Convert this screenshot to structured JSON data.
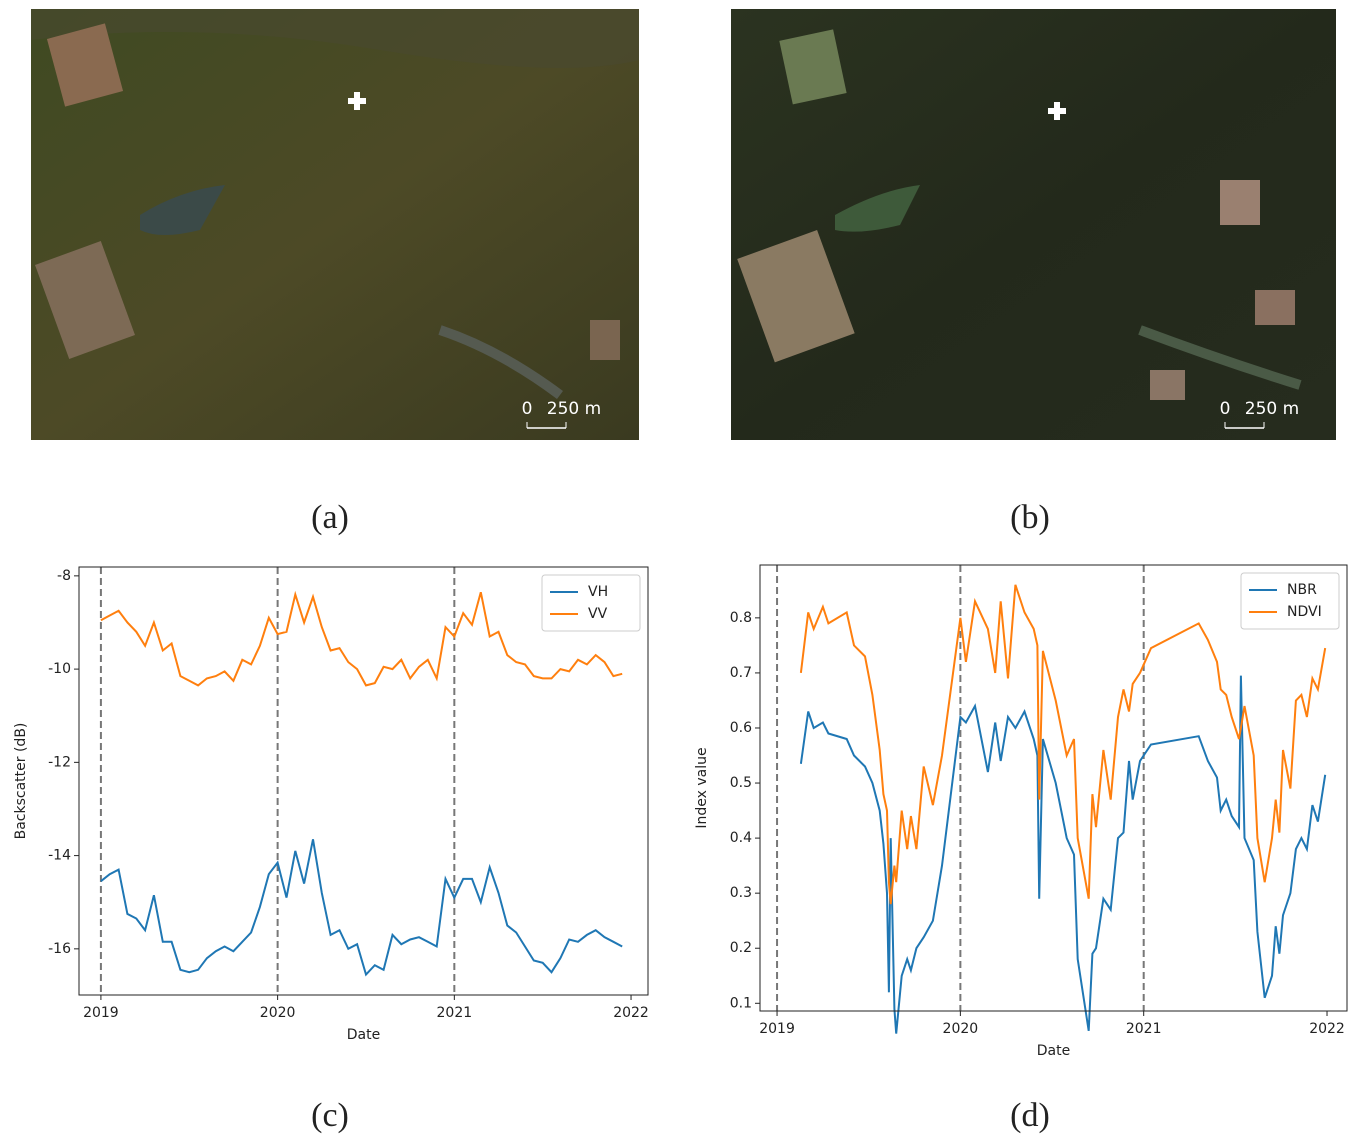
{
  "images": [
    {
      "scale_bar": {
        "start": "0",
        "length": "250 m"
      },
      "caption": "(a)"
    },
    {
      "scale_bar": {
        "start": "0",
        "length": "250 m"
      },
      "caption": "(b)"
    }
  ],
  "chart_data": [
    {
      "type": "line",
      "caption": "(c)",
      "xlabel": "Date",
      "ylabel": "Backscatter (dB)",
      "x": [
        2019.0,
        2019.05,
        2019.1,
        2019.15,
        2019.2,
        2019.25,
        2019.3,
        2019.35,
        2019.4,
        2019.45,
        2019.5,
        2019.55,
        2019.6,
        2019.65,
        2019.7,
        2019.75,
        2019.8,
        2019.85,
        2019.9,
        2019.95,
        2020.0,
        2020.05,
        2020.1,
        2020.15,
        2020.2,
        2020.25,
        2020.3,
        2020.35,
        2020.4,
        2020.45,
        2020.5,
        2020.55,
        2020.6,
        2020.65,
        2020.7,
        2020.75,
        2020.8,
        2020.85,
        2020.9,
        2020.95,
        2021.0,
        2021.05,
        2021.1,
        2021.15,
        2021.2,
        2021.25,
        2021.3,
        2021.35,
        2021.4,
        2021.45,
        2021.5,
        2021.55,
        2021.6,
        2021.65,
        2021.7,
        2021.75,
        2021.8,
        2021.85,
        2021.9,
        2021.95
      ],
      "series": [
        {
          "name": "VH",
          "color": "#1f77b4",
          "values": [
            -14.55,
            -14.4,
            -14.3,
            -15.25,
            -15.35,
            -15.6,
            -14.85,
            -15.85,
            -15.85,
            -16.45,
            -16.5,
            -16.45,
            -16.2,
            -16.05,
            -15.95,
            -16.05,
            -15.85,
            -15.65,
            -15.1,
            -14.4,
            -14.15,
            -14.9,
            -13.9,
            -14.6,
            -13.65,
            -14.8,
            -15.7,
            -15.6,
            -16.0,
            -15.9,
            -16.55,
            -16.35,
            -16.45,
            -15.7,
            -15.9,
            -15.8,
            -15.75,
            -15.85,
            -15.95,
            -14.5,
            -14.9,
            -14.5,
            -14.5,
            -15.0,
            -14.25,
            -14.8,
            -15.5,
            -15.65,
            -15.95,
            -16.25,
            -16.3,
            -16.5,
            -16.2,
            -15.8,
            -15.85,
            -15.7,
            -15.6,
            -15.75,
            -15.85,
            -15.95
          ]
        },
        {
          "name": "VV",
          "color": "#ff7f0e",
          "values": [
            -8.95,
            -8.85,
            -8.75,
            -9.0,
            -9.2,
            -9.5,
            -9.0,
            -9.6,
            -9.45,
            -10.15,
            -10.25,
            -10.35,
            -10.2,
            -10.15,
            -10.05,
            -10.25,
            -9.8,
            -9.9,
            -9.5,
            -8.9,
            -9.25,
            -9.2,
            -8.4,
            -9.0,
            -8.45,
            -9.1,
            -9.6,
            -9.55,
            -9.85,
            -10.0,
            -10.35,
            -10.3,
            -9.95,
            -10.0,
            -9.8,
            -10.2,
            -9.95,
            -9.8,
            -10.2,
            -9.1,
            -9.3,
            -8.8,
            -9.05,
            -8.35,
            -9.3,
            -9.2,
            -9.7,
            -9.85,
            -9.9,
            -10.15,
            -10.2,
            -10.2,
            -10.0,
            -10.05,
            -9.8,
            -9.9,
            -9.7,
            -9.85,
            -10.15,
            -10.1
          ]
        }
      ],
      "xlim": [
        2018.876,
        2022.096
      ],
      "ylim": [
        -16.99,
        -7.81
      ],
      "xticks": [
        2019,
        2020,
        2021,
        2022
      ],
      "yticks": [
        -16,
        -14,
        -12,
        -10,
        -8
      ],
      "vlines": [
        2019,
        2020,
        2021
      ],
      "legend": "upper right"
    },
    {
      "type": "line",
      "caption": "(d)",
      "xlabel": "Date",
      "ylabel": "Index value",
      "x": [
        2019.13,
        2019.17,
        2019.2,
        2019.25,
        2019.28,
        2019.38,
        2019.42,
        2019.48,
        2019.52,
        2019.56,
        2019.58,
        2019.6,
        2019.61,
        2019.62,
        2019.64,
        2019.65,
        2019.68,
        2019.71,
        2019.73,
        2019.76,
        2019.8,
        2019.85,
        2019.9,
        2020.0,
        2020.03,
        2020.08,
        2020.15,
        2020.19,
        2020.22,
        2020.26,
        2020.3,
        2020.35,
        2020.4,
        2020.42,
        2020.43,
        2020.45,
        2020.52,
        2020.58,
        2020.62,
        2020.64,
        2020.7,
        2020.72,
        2020.74,
        2020.78,
        2020.82,
        2020.86,
        2020.89,
        2020.92,
        2020.94,
        2020.98,
        2021.04,
        2021.3,
        2021.35,
        2021.4,
        2021.42,
        2021.45,
        2021.48,
        2021.52,
        2021.53,
        2021.55,
        2021.6,
        2021.62,
        2021.66,
        2021.7,
        2021.72,
        2021.74,
        2021.76,
        2021.8,
        2021.83,
        2021.86,
        2021.89,
        2021.92,
        2021.95,
        2021.99
      ],
      "series": [
        {
          "name": "NBR",
          "color": "#1f77b4",
          "values": [
            0.535,
            0.63,
            0.6,
            0.61,
            0.59,
            0.58,
            0.55,
            0.53,
            0.5,
            0.45,
            0.39,
            0.3,
            0.12,
            0.4,
            0.09,
            0.045,
            0.15,
            0.18,
            0.16,
            0.2,
            0.22,
            0.25,
            0.35,
            0.62,
            0.61,
            0.64,
            0.52,
            0.61,
            0.54,
            0.62,
            0.6,
            0.63,
            0.58,
            0.55,
            0.29,
            0.58,
            0.5,
            0.4,
            0.37,
            0.18,
            0.05,
            0.19,
            0.2,
            0.29,
            0.27,
            0.4,
            0.41,
            0.54,
            0.47,
            0.54,
            0.57,
            0.585,
            0.54,
            0.51,
            0.45,
            0.47,
            0.44,
            0.42,
            0.695,
            0.4,
            0.36,
            0.23,
            0.11,
            0.15,
            0.24,
            0.19,
            0.26,
            0.3,
            0.38,
            0.4,
            0.38,
            0.46,
            0.43,
            0.515
          ]
        },
        {
          "name": "NDVI",
          "color": "#ff7f0e",
          "values": [
            0.7,
            0.81,
            0.78,
            0.82,
            0.79,
            0.81,
            0.75,
            0.73,
            0.66,
            0.56,
            0.48,
            0.45,
            0.32,
            0.28,
            0.35,
            0.32,
            0.45,
            0.38,
            0.44,
            0.38,
            0.53,
            0.46,
            0.55,
            0.8,
            0.72,
            0.83,
            0.78,
            0.7,
            0.83,
            0.69,
            0.86,
            0.81,
            0.78,
            0.75,
            0.47,
            0.74,
            0.65,
            0.55,
            0.58,
            0.4,
            0.29,
            0.48,
            0.42,
            0.56,
            0.47,
            0.62,
            0.67,
            0.63,
            0.68,
            0.7,
            0.745,
            0.79,
            0.76,
            0.72,
            0.67,
            0.66,
            0.62,
            0.58,
            0.6,
            0.64,
            0.55,
            0.4,
            0.32,
            0.4,
            0.47,
            0.41,
            0.56,
            0.49,
            0.65,
            0.66,
            0.62,
            0.69,
            0.67,
            0.745
          ]
        }
      ],
      "xlim": [
        2018.907,
        2022.109
      ],
      "ylim": [
        0.086,
        0.896
      ],
      "xticks": [
        2019,
        2020,
        2021,
        2022
      ],
      "yticks": [
        0.1,
        0.2,
        0.3,
        0.4,
        0.5,
        0.6,
        0.7,
        0.8
      ],
      "vlines": [
        2019,
        2020,
        2021
      ],
      "legend": "upper right"
    }
  ]
}
